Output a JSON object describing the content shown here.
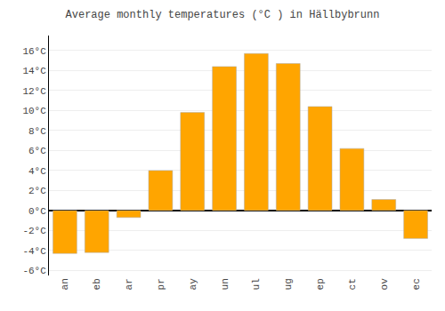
{
  "chart_data": {
    "type": "bar",
    "title": "Average monthly temperatures (°C ) in Hällbybrunn",
    "categories": [
      "an",
      "eb",
      "ar",
      "pr",
      "ay",
      "un",
      "ul",
      "ug",
      "ep",
      "ct",
      "ov",
      "ec"
    ],
    "values": [
      -4.3,
      -4.2,
      -0.7,
      4.0,
      9.8,
      14.4,
      15.7,
      14.7,
      10.4,
      6.2,
      1.1,
      -2.8
    ],
    "color": "#FFA500",
    "ylim": [
      -6.5,
      17.5
    ],
    "yticks": [
      {
        "value": -6,
        "label": "-6°C"
      },
      {
        "value": -4,
        "label": "-4°C"
      },
      {
        "value": -2,
        "label": "-2°C"
      },
      {
        "value": 0,
        "label": "0°C"
      },
      {
        "value": 2,
        "label": "2°C"
      },
      {
        "value": 4,
        "label": "4°C"
      },
      {
        "value": 6,
        "label": "6°C"
      },
      {
        "value": 8,
        "label": "8°C"
      },
      {
        "value": 10,
        "label": "10°C"
      },
      {
        "value": 12,
        "label": "12°C"
      },
      {
        "value": 14,
        "label": "14°C"
      },
      {
        "value": 16,
        "label": "16°C"
      }
    ],
    "grid": true
  }
}
